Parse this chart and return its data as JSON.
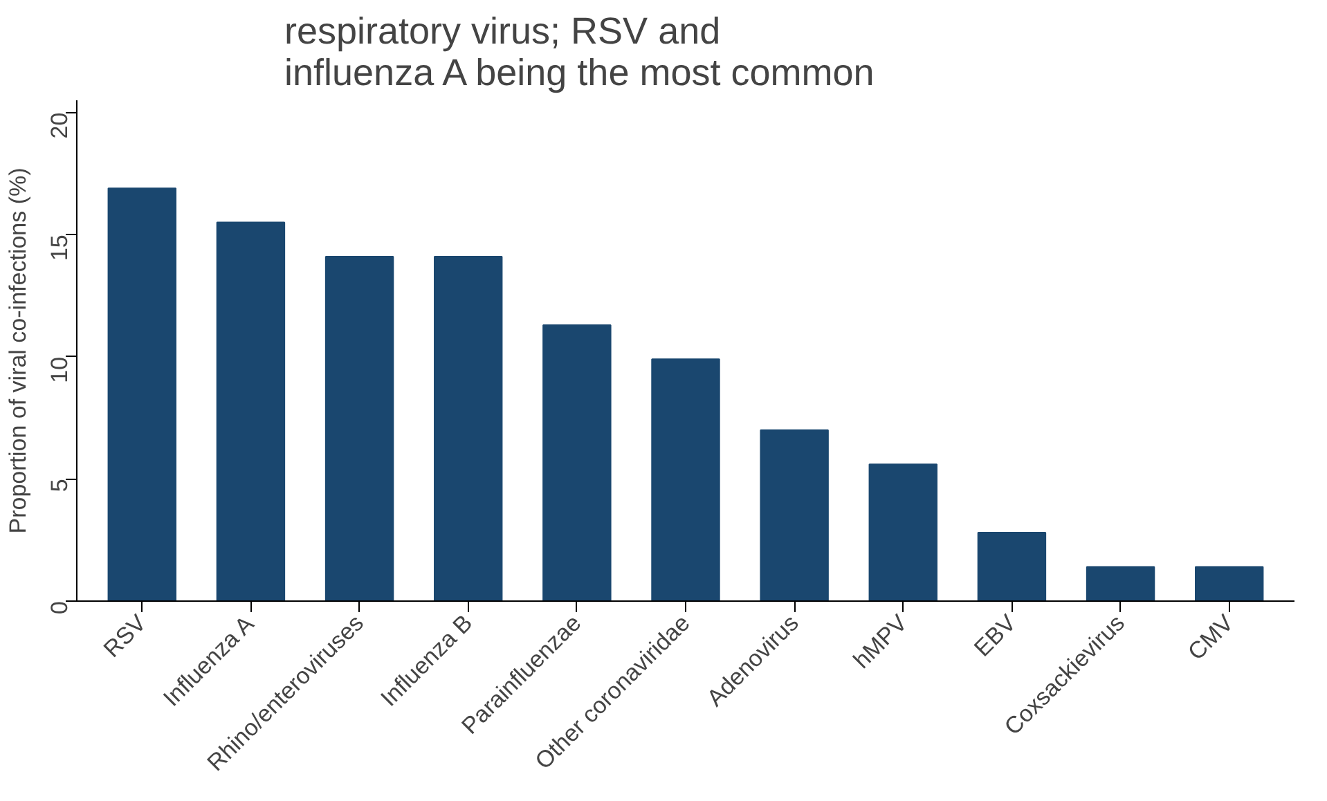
{
  "chart_data": {
    "type": "bar",
    "title": "respiratory virus; RSV and\ninfluenza A being the most common",
    "ylabel": "Proportion of viral co-infections (%)",
    "categories": [
      "RSV",
      "Influenza A",
      "Rhino/enteroviruses",
      "Influenza B",
      "Parainfluenzae",
      "Other coronaviridae",
      "Adenovirus",
      "hMPV",
      "EBV",
      "Coxsackievirus",
      "CMV"
    ],
    "values": [
      16.9,
      15.5,
      14.1,
      14.1,
      11.3,
      9.9,
      7.0,
      5.6,
      2.8,
      1.4,
      1.4
    ],
    "color": "#1a476f",
    "ylim": [
      0,
      20.5
    ],
    "yticks": [
      0,
      5,
      10,
      15,
      20
    ],
    "grid": false
  }
}
